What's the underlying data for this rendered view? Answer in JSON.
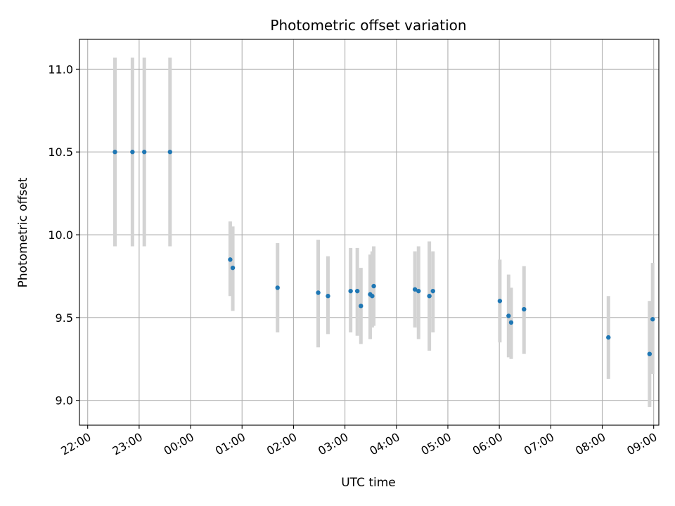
{
  "chart_data": {
    "type": "scatter",
    "title": "Photometric offset variation",
    "xlabel": "UTC time",
    "ylabel": "Photometric offset",
    "grid": true,
    "x_unit": "UTC time (hours, continuing past midnight)",
    "xlim": [
      21.84,
      33.1
    ],
    "ylim": [
      8.85,
      11.18
    ],
    "x_ticks": [
      {
        "value": 22,
        "label": "22:00"
      },
      {
        "value": 23,
        "label": "23:00"
      },
      {
        "value": 24,
        "label": "00:00"
      },
      {
        "value": 25,
        "label": "01:00"
      },
      {
        "value": 26,
        "label": "02:00"
      },
      {
        "value": 27,
        "label": "03:00"
      },
      {
        "value": 28,
        "label": "04:00"
      },
      {
        "value": 29,
        "label": "05:00"
      },
      {
        "value": 30,
        "label": "06:00"
      },
      {
        "value": 31,
        "label": "07:00"
      },
      {
        "value": 32,
        "label": "08:00"
      },
      {
        "value": 33,
        "label": "09:00"
      }
    ],
    "y_ticks": [
      {
        "value": 9.0,
        "label": "9.0"
      },
      {
        "value": 9.5,
        "label": "9.5"
      },
      {
        "value": 10.0,
        "label": "10.0"
      },
      {
        "value": 10.5,
        "label": "10.5"
      },
      {
        "value": 11.0,
        "label": "11.0"
      }
    ],
    "colors": {
      "point": "#1f77b4",
      "errorbar": "#d3d3d3",
      "grid": "#b0b0b0",
      "axes": "#000000"
    },
    "series": [
      {
        "points": [
          {
            "x": 22.53,
            "y": 10.5,
            "ylow": 9.93,
            "yhigh": 11.07
          },
          {
            "x": 22.87,
            "y": 10.5,
            "ylow": 9.93,
            "yhigh": 11.07
          },
          {
            "x": 23.1,
            "y": 10.5,
            "ylow": 9.93,
            "yhigh": 11.07
          },
          {
            "x": 23.6,
            "y": 10.5,
            "ylow": 9.93,
            "yhigh": 11.07
          },
          {
            "x": 24.77,
            "y": 9.85,
            "ylow": 9.63,
            "yhigh": 10.08
          },
          {
            "x": 24.82,
            "y": 9.8,
            "ylow": 9.54,
            "yhigh": 10.05
          },
          {
            "x": 25.69,
            "y": 9.68,
            "ylow": 9.41,
            "yhigh": 9.95
          },
          {
            "x": 26.48,
            "y": 9.65,
            "ylow": 9.32,
            "yhigh": 9.97
          },
          {
            "x": 26.67,
            "y": 9.63,
            "ylow": 9.4,
            "yhigh": 9.87
          },
          {
            "x": 27.11,
            "y": 9.66,
            "ylow": 9.41,
            "yhigh": 9.92
          },
          {
            "x": 27.24,
            "y": 9.66,
            "ylow": 9.39,
            "yhigh": 9.92
          },
          {
            "x": 27.31,
            "y": 9.57,
            "ylow": 9.34,
            "yhigh": 9.8
          },
          {
            "x": 27.49,
            "y": 9.64,
            "ylow": 9.37,
            "yhigh": 9.88
          },
          {
            "x": 27.53,
            "y": 9.63,
            "ylow": 9.44,
            "yhigh": 9.9
          },
          {
            "x": 27.56,
            "y": 9.69,
            "ylow": 9.45,
            "yhigh": 9.93
          },
          {
            "x": 28.36,
            "y": 9.67,
            "ylow": 9.44,
            "yhigh": 9.9
          },
          {
            "x": 28.43,
            "y": 9.66,
            "ylow": 9.37,
            "yhigh": 9.93
          },
          {
            "x": 28.64,
            "y": 9.63,
            "ylow": 9.3,
            "yhigh": 9.96
          },
          {
            "x": 28.71,
            "y": 9.66,
            "ylow": 9.41,
            "yhigh": 9.9
          },
          {
            "x": 30.01,
            "y": 9.6,
            "ylow": 9.35,
            "yhigh": 9.85
          },
          {
            "x": 30.18,
            "y": 9.51,
            "ylow": 9.26,
            "yhigh": 9.76
          },
          {
            "x": 30.23,
            "y": 9.47,
            "ylow": 9.25,
            "yhigh": 9.68
          },
          {
            "x": 30.48,
            "y": 9.55,
            "ylow": 9.28,
            "yhigh": 9.81
          },
          {
            "x": 32.12,
            "y": 9.38,
            "ylow": 9.13,
            "yhigh": 9.63
          },
          {
            "x": 32.92,
            "y": 9.28,
            "ylow": 8.96,
            "yhigh": 9.6
          },
          {
            "x": 32.98,
            "y": 9.49,
            "ylow": 9.16,
            "yhigh": 9.83
          }
        ]
      }
    ]
  }
}
